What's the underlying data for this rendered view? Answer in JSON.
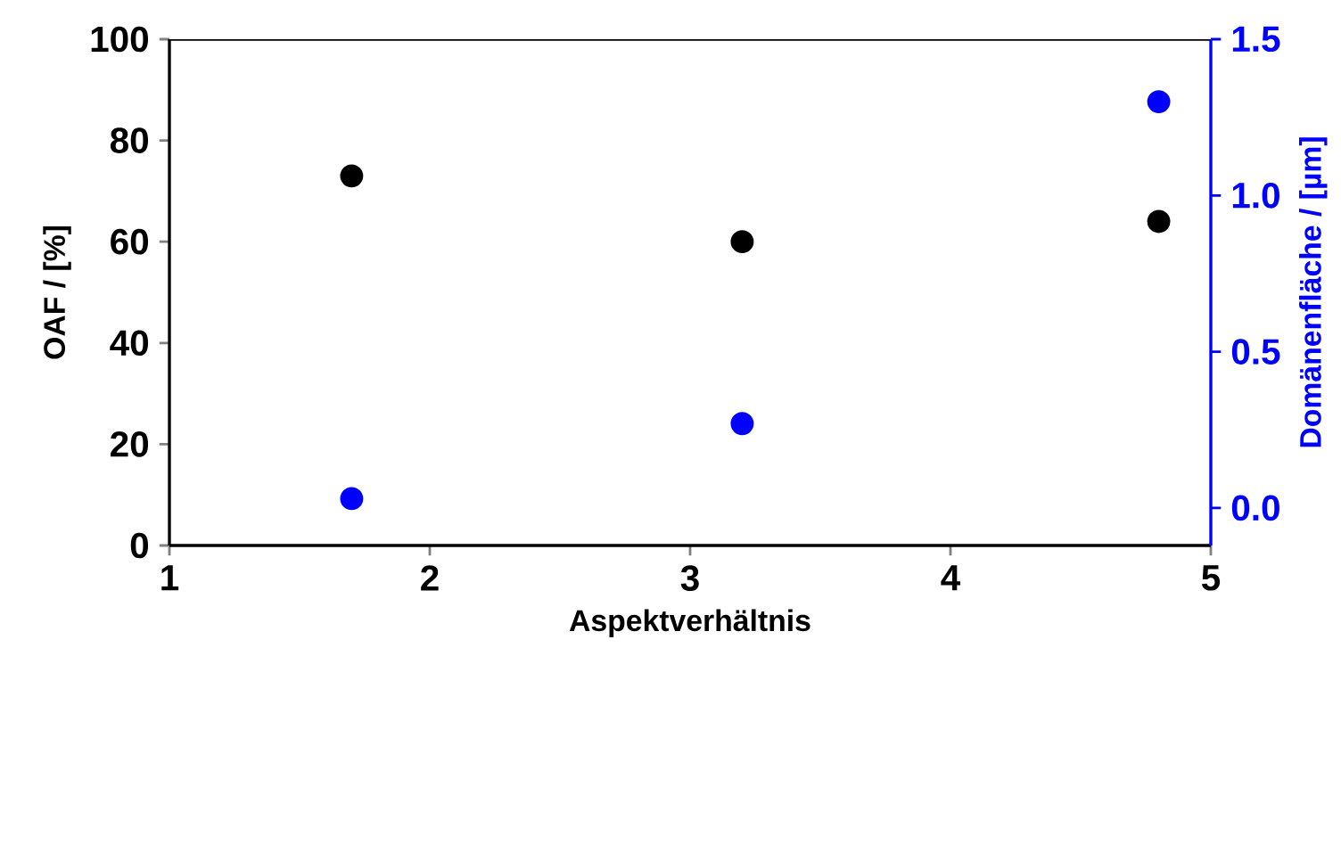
{
  "chart_data": {
    "type": "scatter",
    "xlabel": "Aspektverhältnis",
    "ylabel": "OAF / [%]",
    "y2label": "Domänenfläche / [µm]",
    "xlim": [
      1,
      5
    ],
    "xticks": [
      1,
      2,
      3,
      4,
      5
    ],
    "ylim": [
      0,
      100
    ],
    "yticks": [
      0,
      20,
      40,
      60,
      80,
      100
    ],
    "y2lim": [
      -0.12,
      1.5
    ],
    "y2ticks": [
      {
        "value": 0,
        "label": "0.0"
      },
      0.5,
      {
        "value": 1,
        "label": "1.0"
      },
      1.5
    ],
    "marker": "circle",
    "grid": false,
    "series": [
      {
        "color": "#000000",
        "x": [
          1.7,
          3.2,
          4.8
        ],
        "values": [
          73,
          60,
          64
        ]
      },
      {
        "color": "#0000ff",
        "axis": "y2",
        "x": [
          1.7,
          3.2,
          4.8
        ],
        "values": [
          0.03,
          0.27,
          1.3
        ]
      }
    ]
  }
}
